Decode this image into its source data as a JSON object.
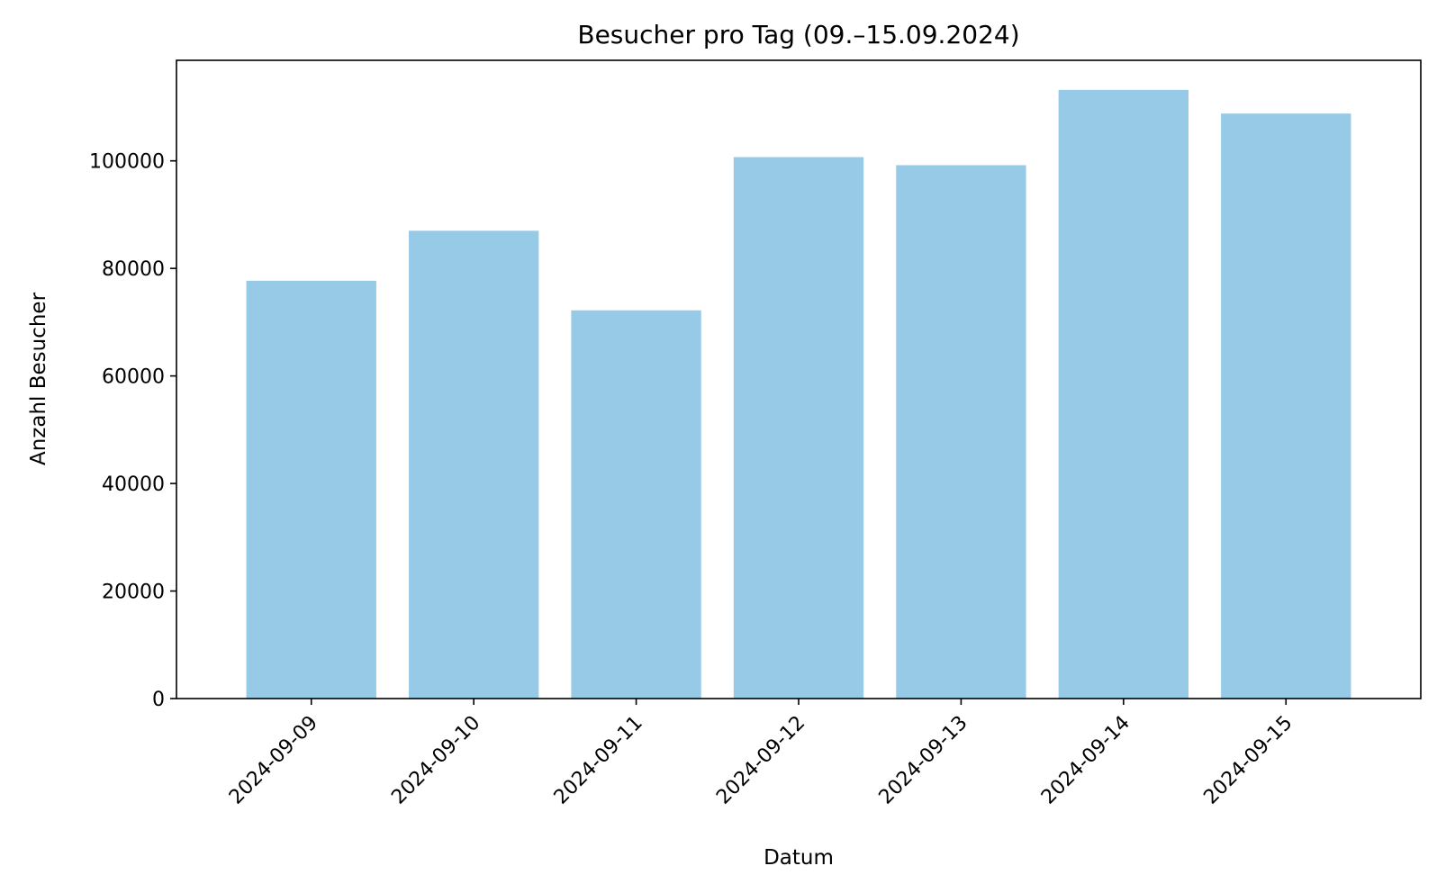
{
  "chart_data": {
    "type": "bar",
    "title": "Besucher pro Tag (09.–15.09.2024)",
    "xlabel": "Datum",
    "ylabel": "Anzahl Besucher",
    "categories": [
      "2024-09-09",
      "2024-09-10",
      "2024-09-11",
      "2024-09-12",
      "2024-09-13",
      "2024-09-14",
      "2024-09-15"
    ],
    "values": [
      77700,
      87000,
      72200,
      100700,
      99200,
      113200,
      108800
    ],
    "yticks": [
      0,
      20000,
      40000,
      60000,
      80000,
      100000
    ],
    "ylim": [
      0,
      118700
    ],
    "bar_color": "#97cae6",
    "grid": false,
    "legend": "none"
  }
}
